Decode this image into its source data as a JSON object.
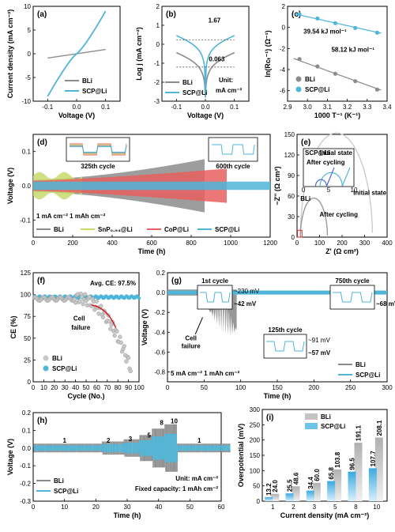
{
  "colors": {
    "bli": "#8c8c8c",
    "scp": "#4fb6d9",
    "snp": "#c8d96b",
    "cop": "#e8605f",
    "scpDark": "#2a8fc0",
    "blue2": "#4f6bd6"
  },
  "chart_data": [
    {
      "id": "a",
      "panel_label": "(a)",
      "type": "line",
      "xlabel": "Voltage (V)",
      "ylabel": "Current density (mA cm⁻²)",
      "xlim": [
        -0.15,
        0.15
      ],
      "ylim": [
        -10,
        10
      ],
      "xticks": [
        "-0.1",
        "0.0",
        "0.1"
      ],
      "yticks": [
        "-10",
        "-5",
        "0",
        "5",
        "10"
      ],
      "series": [
        {
          "name": "BLi",
          "x": [
            -0.1,
            0.1
          ],
          "y": [
            -0.9,
            0.9
          ]
        },
        {
          "name": "SCP@Li",
          "x": [
            -0.1,
            -0.05,
            0,
            0.05,
            0.1
          ],
          "y": [
            -9,
            -4,
            0,
            4,
            9
          ]
        }
      ]
    },
    {
      "id": "b",
      "panel_label": "(b)",
      "type": "line",
      "xlabel": "Voltage (V)",
      "ylabel": "Log j (mA cm⁻²)",
      "xlim": [
        -0.15,
        0.15
      ],
      "ylim": [
        -3,
        2
      ],
      "xticks": [
        "-0.1",
        "0.0",
        "0.1"
      ],
      "yticks": [
        "-3",
        "-2",
        "-1",
        "0",
        "1",
        "2"
      ],
      "annotations": [
        "1.67",
        "0.063"
      ],
      "unit_text": [
        "Unit:",
        "mA cm⁻²"
      ],
      "series": [
        {
          "name": "BLi"
        },
        {
          "name": "SCP@Li"
        }
      ]
    },
    {
      "id": "c",
      "panel_label": "(c)",
      "type": "scatter",
      "xlabel": "1000 T⁻¹ (K⁻¹)",
      "ylabel": "ln(Rᴄₜ⁻¹) (Ω⁻¹)",
      "xlim": [
        2.9,
        3.4
      ],
      "ylim": [
        -7,
        2
      ],
      "xticks": [
        "2.9",
        "3.0",
        "3.1",
        "3.2",
        "3.3",
        "3.4"
      ],
      "yticks": [
        "-6",
        "-4",
        "-2",
        "0",
        "2"
      ],
      "annotations": [
        "39.54 kJ mol⁻¹",
        "58.12 kJ mol⁻¹"
      ],
      "series": [
        {
          "name": "SCP@Li",
          "x": [
            2.96,
            3.05,
            3.14,
            3.24,
            3.35
          ],
          "y": [
            1.25,
            0.85,
            0.4,
            -0.05,
            -0.5
          ]
        },
        {
          "name": "BLi",
          "x": [
            2.96,
            3.05,
            3.14,
            3.24,
            3.35
          ],
          "y": [
            -3.0,
            -3.7,
            -4.4,
            -5.1,
            -5.9
          ]
        }
      ]
    },
    {
      "id": "d",
      "panel_label": "(d)",
      "type": "line",
      "xlabel": "Time (h)",
      "ylabel": "Voltage (V)",
      "xlim": [
        0,
        1200
      ],
      "ylim": [
        -0.15,
        0.15
      ],
      "xticks": [
        "0",
        "200",
        "400",
        "600",
        "800",
        "1000",
        "1200"
      ],
      "yticks": [
        "-0.1",
        "0.0",
        "0.1"
      ],
      "condition": "1 mA cm⁻² 1 mAh cm⁻²",
      "insets": [
        "325th cycle",
        "600th cycle"
      ],
      "series": [
        {
          "name": "BLi",
          "end_h": 870
        },
        {
          "name": "SnP₀.₉₄@Li",
          "end_h": 250
        },
        {
          "name": "CoP@Li",
          "end_h": 980
        },
        {
          "name": "SCP@Li",
          "end_h": 1200
        }
      ]
    },
    {
      "id": "e",
      "panel_label": "(e)",
      "type": "line",
      "xlabel": "Z' (Ω cm²)",
      "ylabel": "−Z'' (Ω cm²)",
      "xlim": [
        0,
        400
      ],
      "ylim": [
        0,
        150
      ],
      "xticks": [
        "0",
        "100",
        "200",
        "300",
        "400"
      ],
      "yticks": [
        "0",
        "30",
        "60",
        "90",
        "120",
        "150"
      ],
      "inset_xticks": [
        "0",
        "5",
        "10"
      ],
      "inset_yticks": [
        "0",
        "2",
        "4",
        "6"
      ],
      "labels": [
        "SCP@Li",
        "Initial state",
        "After cycling",
        "BLi",
        "Initial state",
        "After cycling"
      ]
    },
    {
      "id": "f",
      "panel_label": "(f)",
      "type": "scatter",
      "xlabel": "Cycle (No.)",
      "ylabel": "CE (%)",
      "xlim": [
        0,
        100
      ],
      "ylim": [
        0,
        125
      ],
      "xticks": [
        "0",
        "10",
        "20",
        "30",
        "40",
        "50",
        "60",
        "70",
        "80",
        "90",
        "100"
      ],
      "yticks": [
        "0",
        "25",
        "50",
        "75",
        "100",
        "125"
      ],
      "annotations": [
        "Avg. CE: 97.5%",
        "Cell failure"
      ],
      "series": [
        {
          "name": "BLi"
        },
        {
          "name": "SCP@Li"
        }
      ]
    },
    {
      "id": "g",
      "panel_label": "(g)",
      "type": "line",
      "xlabel": "Time (h)",
      "ylabel": "Voltage (V)",
      "xlim": [
        0,
        300
      ],
      "ylim": [
        -0.9,
        0.2
      ],
      "xticks": [
        "0",
        "50",
        "100",
        "150",
        "200",
        "250",
        "300"
      ],
      "yticks": [
        "-0.8",
        "-0.6",
        "-0.4",
        "-0.2",
        "0.0",
        "0.2"
      ],
      "condition": "5 mA cm⁻² 1 mAh cm⁻²",
      "insets": [
        "1st cycle",
        "750th cycle",
        "125th cycle"
      ],
      "inset_labels": [
        "~230 mV",
        "~42 mV",
        "~68 mV",
        "~91 mV",
        "~57 mV"
      ],
      "inset_yticks": [
        "0.1",
        "0.0",
        "-0.1"
      ],
      "annotations": [
        "Cell failure"
      ],
      "series": [
        {
          "name": "BLi"
        },
        {
          "name": "SCP@Li"
        }
      ]
    },
    {
      "id": "h",
      "panel_label": "(h)",
      "type": "line",
      "xlabel": "Time (h)",
      "ylabel": "Voltage (V)",
      "xlim": [
        0,
        60
      ],
      "ylim": [
        -0.3,
        0.2
      ],
      "xticks": [
        "0",
        "10",
        "20",
        "30",
        "40",
        "50",
        "60"
      ],
      "yticks": [
        "-0.3",
        "-0.2",
        "-0.1",
        "0.0",
        "0.1",
        "0.2"
      ],
      "rate_labels": [
        "1",
        "2",
        "3",
        "5",
        "8",
        "10",
        "1"
      ],
      "unit_text": "Unit: mA cm⁻²",
      "fixed_capacity": "Fixed capacity: 1 mAh cm⁻²",
      "series": [
        {
          "name": "BLi"
        },
        {
          "name": "SCP@Li"
        }
      ]
    },
    {
      "id": "i",
      "panel_label": "(i)",
      "type": "bar",
      "xlabel": "Current density (mA cm⁻²)",
      "ylabel": "Overpotential (mV)",
      "categories": [
        "1",
        "2",
        "3",
        "5",
        "8",
        "10"
      ],
      "ylim": [
        0,
        300
      ],
      "yticks": [
        "0",
        "50",
        "100",
        "150",
        "200",
        "250",
        "300"
      ],
      "series": [
        {
          "name": "BLi",
          "values": [
            24.0,
            48.6,
            60.0,
            103.8,
            191.1,
            208.1
          ]
        },
        {
          "name": "SCP@Li",
          "values": [
            13.2,
            25.5,
            34.4,
            65.8,
            96.5,
            107.7
          ]
        }
      ],
      "value_labels": {
        "BLi": [
          "24.0",
          "48.6",
          "60.0",
          "103.8",
          "191.1",
          "208.1"
        ],
        "SCP@Li": [
          "13.2",
          "25.5",
          "34.4",
          "65.8",
          "96.5",
          "107.7"
        ]
      }
    }
  ]
}
